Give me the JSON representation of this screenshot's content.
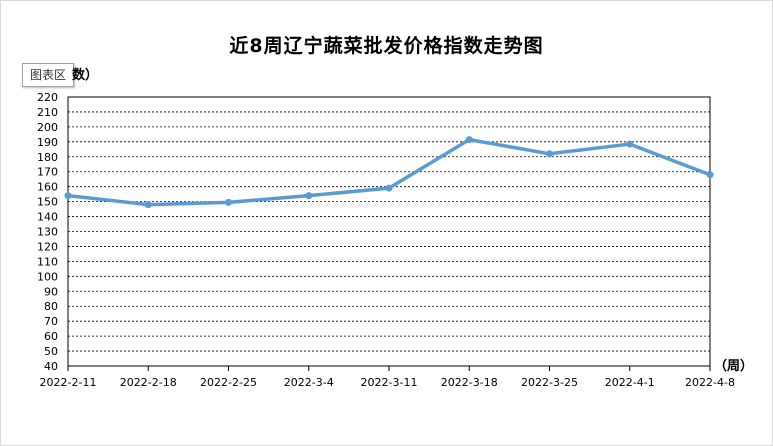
{
  "chart_area_tag": "图表区",
  "colors": {
    "line": "#5b9bd5",
    "axis": "#000000",
    "grid": "#000000"
  },
  "chart_data": {
    "type": "line",
    "title": "近8周辽宁蔬菜批发价格指数走势图",
    "ylabel": "数）",
    "xlabel": "（周）",
    "categories": [
      "2022-2-11",
      "2022-2-18",
      "2022-2-25",
      "2022-3-4",
      "2022-3-11",
      "2022-3-18",
      "2022-3-25",
      "2022-4-1",
      "2022-4-8"
    ],
    "series": [
      {
        "values": [
          154,
          148,
          149.5,
          154,
          159,
          191.5,
          182,
          188.5,
          168
        ]
      }
    ],
    "ylim": [
      40,
      220
    ],
    "yticks": [
      40,
      50,
      60,
      70,
      80,
      90,
      100,
      110,
      120,
      130,
      140,
      150,
      160,
      170,
      180,
      190,
      200,
      210,
      220
    ],
    "grid": true,
    "legend": "none"
  }
}
